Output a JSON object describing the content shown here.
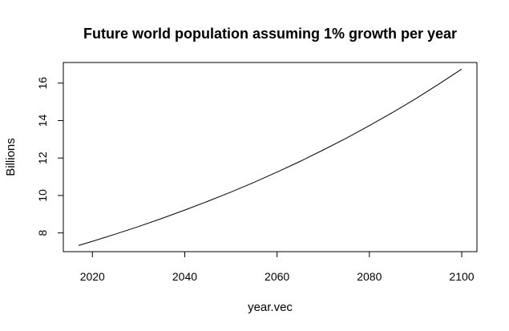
{
  "chart_data": {
    "type": "line",
    "title": "Future world population assuming 1% growth per year",
    "xlabel": "year.vec",
    "ylabel": "Billions",
    "xlim": [
      2013.7,
      2103.3
    ],
    "ylim": [
      7.0,
      17.1
    ],
    "xticks": [
      2020,
      2040,
      2060,
      2080,
      2100
    ],
    "yticks": [
      8,
      10,
      12,
      14,
      16
    ],
    "grid": false,
    "legend": "none",
    "series": [
      {
        "color": "#000000",
        "x": [
          2017,
          2020,
          2025,
          2030,
          2035,
          2040,
          2045,
          2050,
          2055,
          2060,
          2065,
          2070,
          2075,
          2080,
          2085,
          2090,
          2095,
          2100
        ],
        "y": [
          7.33,
          7.55,
          7.94,
          8.34,
          8.77,
          9.22,
          9.69,
          10.18,
          10.7,
          11.25,
          11.82,
          12.43,
          13.06,
          13.73,
          14.43,
          15.16,
          15.94,
          16.75
        ]
      }
    ]
  }
}
